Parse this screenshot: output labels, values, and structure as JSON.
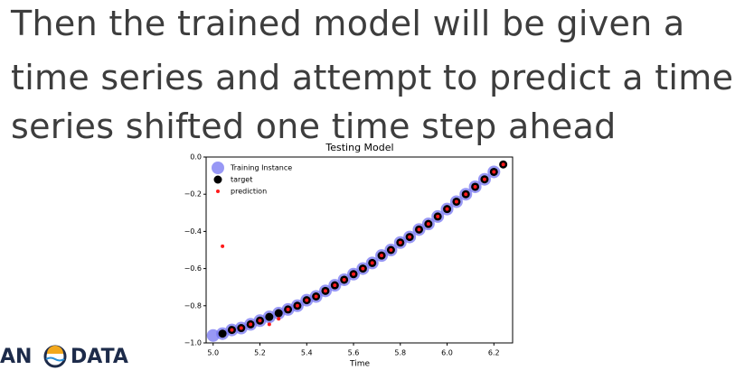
{
  "heading": [
    "Then the trained model will be given a",
    "time series and attempt to predict a time",
    "series shifted one time step ahead"
  ],
  "logo": {
    "left": "AN",
    "right": "DATA"
  },
  "chart_data": {
    "type": "scatter",
    "title": "Testing Model",
    "x_label": "Time",
    "xlim": [
      4.97,
      6.28
    ],
    "ylim": [
      -1.0,
      0.0
    ],
    "xticks": [
      {
        "value": 5.0,
        "label": "5.0"
      },
      {
        "value": 5.2,
        "label": "5.2"
      },
      {
        "value": 5.4,
        "label": "5.4"
      },
      {
        "value": 5.6,
        "label": "5.6"
      },
      {
        "value": 5.8,
        "label": "5.8"
      },
      {
        "value": 6.0,
        "label": "6.0"
      },
      {
        "value": 6.2,
        "label": "6.2"
      }
    ],
    "yticks": [
      {
        "value": 0.0,
        "label": "0.0"
      },
      {
        "value": -0.2,
        "label": "−0.2"
      },
      {
        "value": -0.4,
        "label": "−0.4"
      },
      {
        "value": -0.6,
        "label": "−0.6"
      },
      {
        "value": -0.8,
        "label": "−0.8"
      },
      {
        "value": -1.0,
        "label": "−1.0"
      }
    ],
    "legend": "upper left",
    "series": [
      {
        "name": "Training Instance",
        "color": "#7676f2",
        "x": [
          5.0,
          5.04,
          5.08,
          5.12,
          5.16,
          5.2,
          5.24,
          5.28,
          5.32,
          5.36,
          5.4,
          5.44,
          5.48,
          5.52,
          5.56,
          5.6,
          5.64,
          5.68,
          5.72,
          5.76,
          5.8,
          5.84,
          5.88,
          5.92,
          5.96,
          6.0,
          6.04,
          6.08,
          6.12,
          6.16,
          6.2
        ],
        "values": [
          -0.96,
          -0.95,
          -0.93,
          -0.92,
          -0.9,
          -0.88,
          -0.86,
          -0.84,
          -0.82,
          -0.8,
          -0.77,
          -0.75,
          -0.72,
          -0.69,
          -0.66,
          -0.63,
          -0.6,
          -0.57,
          -0.53,
          -0.5,
          -0.46,
          -0.43,
          -0.39,
          -0.36,
          -0.32,
          -0.28,
          -0.24,
          -0.2,
          -0.16,
          -0.12,
          -0.08
        ]
      },
      {
        "name": "target",
        "color": "#000000",
        "x": [
          5.04,
          5.08,
          5.12,
          5.16,
          5.2,
          5.24,
          5.28,
          5.32,
          5.36,
          5.4,
          5.44,
          5.48,
          5.52,
          5.56,
          5.6,
          5.64,
          5.68,
          5.72,
          5.76,
          5.8,
          5.84,
          5.88,
          5.92,
          5.96,
          6.0,
          6.04,
          6.08,
          6.12,
          6.16,
          6.2,
          6.24
        ],
        "values": [
          -0.95,
          -0.93,
          -0.92,
          -0.9,
          -0.88,
          -0.86,
          -0.84,
          -0.82,
          -0.8,
          -0.77,
          -0.75,
          -0.72,
          -0.69,
          -0.66,
          -0.63,
          -0.6,
          -0.57,
          -0.53,
          -0.5,
          -0.46,
          -0.43,
          -0.39,
          -0.36,
          -0.32,
          -0.28,
          -0.24,
          -0.2,
          -0.16,
          -0.12,
          -0.08,
          -0.04
        ]
      },
      {
        "name": "prediction",
        "color": "#ff1a1a",
        "x": [
          5.04,
          5.08,
          5.12,
          5.16,
          5.2,
          5.24,
          5.28,
          5.32,
          5.36,
          5.4,
          5.44,
          5.48,
          5.52,
          5.56,
          5.6,
          5.64,
          5.68,
          5.72,
          5.76,
          5.8,
          5.84,
          5.88,
          5.92,
          5.96,
          6.0,
          6.04,
          6.08,
          6.12,
          6.16,
          6.2,
          6.24
        ],
        "values": [
          -0.48,
          -0.93,
          -0.92,
          -0.9,
          -0.88,
          -0.9,
          -0.87,
          -0.82,
          -0.8,
          -0.77,
          -0.75,
          -0.72,
          -0.69,
          -0.66,
          -0.63,
          -0.6,
          -0.57,
          -0.53,
          -0.5,
          -0.46,
          -0.43,
          -0.39,
          -0.36,
          -0.32,
          -0.28,
          -0.24,
          -0.2,
          -0.16,
          -0.12,
          -0.08,
          -0.04
        ]
      }
    ]
  }
}
